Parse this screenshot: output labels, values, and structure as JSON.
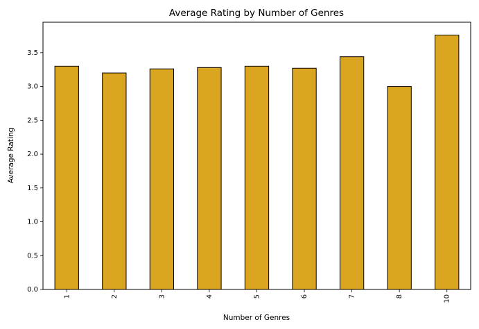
{
  "chart_data": {
    "type": "bar",
    "title": "Average Rating by Number of Genres",
    "xlabel": "Number of Genres",
    "ylabel": "Average Rating",
    "categories": [
      "1",
      "2",
      "3",
      "4",
      "5",
      "6",
      "7",
      "8",
      "10"
    ],
    "values": [
      3.3,
      3.2,
      3.26,
      3.28,
      3.3,
      3.27,
      3.44,
      3.0,
      3.76
    ],
    "ylim": [
      0,
      3.95
    ],
    "yticks": [
      "0.0",
      "0.5",
      "1.0",
      "1.5",
      "2.0",
      "2.5",
      "3.0",
      "3.5"
    ],
    "bar_color": "#DAA520",
    "edge_color": "#000000",
    "grid": false,
    "xtick_rotation": "vertical"
  }
}
